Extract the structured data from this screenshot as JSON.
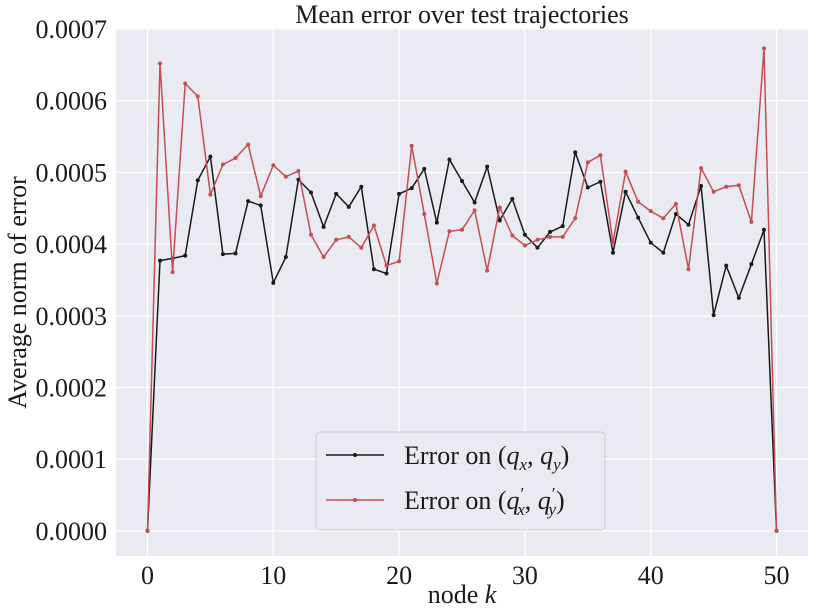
{
  "chart_data": {
    "type": "line",
    "title": "Mean error over test trajectories",
    "xlabel": "node k",
    "ylabel": "Average norm of error",
    "xlim": [
      -2.5,
      52.5
    ],
    "ylim": [
      -3.5e-05,
      0.0007
    ],
    "x_ticks": [
      0,
      10,
      20,
      30,
      40,
      50
    ],
    "x_tick_labels": [
      "0",
      "10",
      "20",
      "30",
      "40",
      "50"
    ],
    "y_ticks": [
      0.0,
      0.0001,
      0.0002,
      0.0003,
      0.0004,
      0.0005,
      0.0006,
      0.0007
    ],
    "y_tick_labels": [
      "0.0000",
      "0.0001",
      "0.0002",
      "0.0003",
      "0.0004",
      "0.0005",
      "0.0006",
      "0.0007"
    ],
    "grid": true,
    "background": "#eaeaf2",
    "legend_position": "lower center",
    "x": [
      0,
      1,
      2,
      3,
      4,
      5,
      6,
      7,
      8,
      9,
      10,
      11,
      12,
      13,
      14,
      15,
      16,
      17,
      18,
      19,
      20,
      21,
      22,
      23,
      24,
      25,
      26,
      27,
      28,
      29,
      30,
      31,
      32,
      33,
      34,
      35,
      36,
      37,
      38,
      39,
      40,
      41,
      42,
      43,
      44,
      45,
      46,
      47,
      48,
      49,
      50
    ],
    "series": [
      {
        "name": "Error on (q_x, q_y)",
        "color": "#1a1a1a",
        "values": [
          0.0,
          0.000377,
          0.00038,
          0.000384,
          0.000489,
          0.000522,
          0.000386,
          0.000387,
          0.00046,
          0.000454,
          0.000346,
          0.000382,
          0.00049,
          0.000472,
          0.000424,
          0.00047,
          0.000452,
          0.00048,
          0.000365,
          0.000359,
          0.00047,
          0.000478,
          0.000505,
          0.00043,
          0.000518,
          0.000488,
          0.000458,
          0.000508,
          0.000433,
          0.000463,
          0.000413,
          0.000395,
          0.000417,
          0.000425,
          0.000528,
          0.000479,
          0.000487,
          0.000388,
          0.000473,
          0.000437,
          0.000402,
          0.000388,
          0.000442,
          0.000427,
          0.000481,
          0.000301,
          0.00037,
          0.000325,
          0.000372,
          0.00042,
          0.0
        ]
      },
      {
        "name": "Error on (q'_x, q'_y)",
        "color": "#c44e52",
        "values": [
          0.0,
          0.000652,
          0.000361,
          0.000624,
          0.000606,
          0.000469,
          0.000511,
          0.00052,
          0.000539,
          0.000467,
          0.00051,
          0.000494,
          0.000502,
          0.000413,
          0.000382,
          0.000406,
          0.00041,
          0.000395,
          0.000426,
          0.00037,
          0.000376,
          0.000537,
          0.000442,
          0.000345,
          0.000418,
          0.00042,
          0.000447,
          0.000363,
          0.000451,
          0.000412,
          0.000398,
          0.000406,
          0.00041,
          0.00041,
          0.000436,
          0.000514,
          0.000524,
          0.000402,
          0.000501,
          0.000459,
          0.000446,
          0.000436,
          0.000456,
          0.000365,
          0.000506,
          0.000473,
          0.00048,
          0.000482,
          0.000431,
          0.000673,
          0.0
        ]
      }
    ]
  }
}
